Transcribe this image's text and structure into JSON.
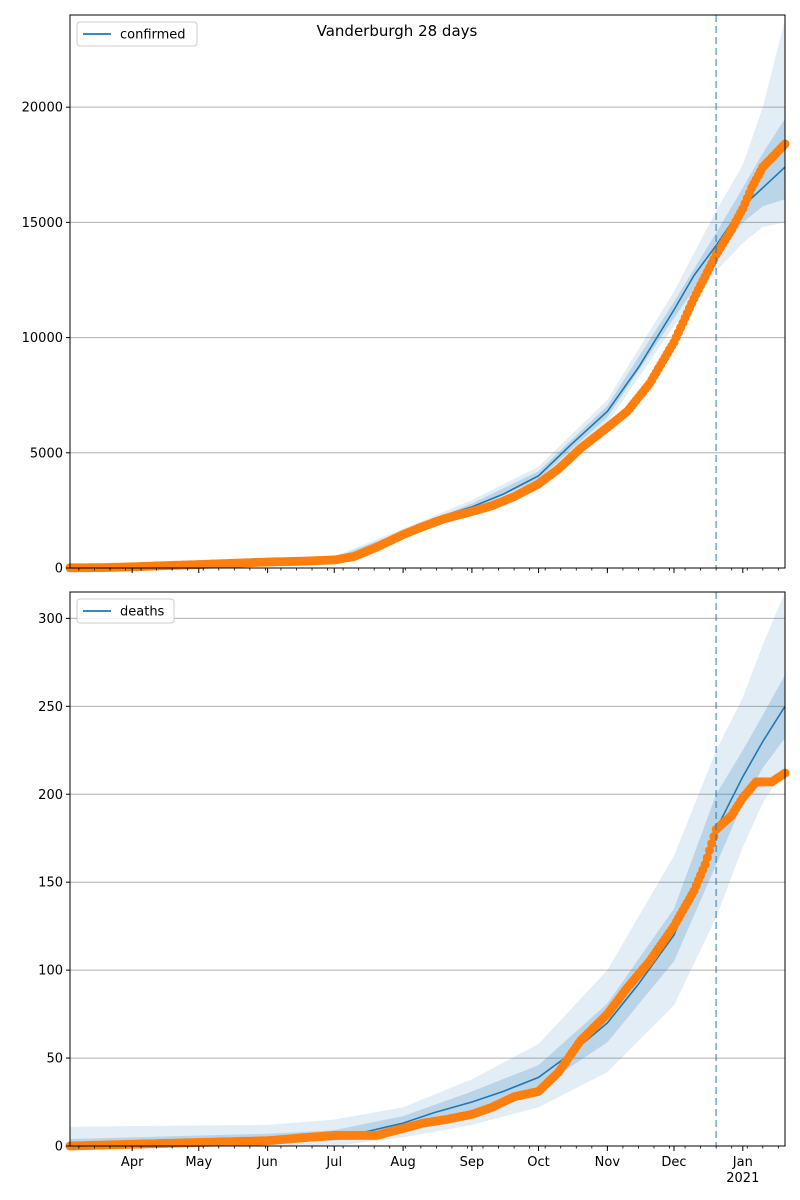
{
  "figure": {
    "title": "Vanderburgh 28 days"
  },
  "colors": {
    "model": "#1f77b4",
    "observed": "#ff7f0e",
    "band": "#1f77b4",
    "grid": "#b0b0b0",
    "divider": "#1f77b4"
  },
  "chart_data": [
    {
      "type": "line",
      "panel": "top",
      "title": "",
      "legend": "top-left",
      "grid": "y",
      "x_ticks": [
        {
          "date": "2020-04-01",
          "label": "Apr"
        },
        {
          "date": "2020-05-01",
          "label": "May"
        },
        {
          "date": "2020-06-01",
          "label": "Jun"
        },
        {
          "date": "2020-07-01",
          "label": "Jul"
        },
        {
          "date": "2020-08-01",
          "label": "Aug"
        },
        {
          "date": "2020-09-01",
          "label": "Sep"
        },
        {
          "date": "2020-10-01",
          "label": "Oct"
        },
        {
          "date": "2020-11-01",
          "label": "Nov"
        },
        {
          "date": "2020-12-01",
          "label": "Dec"
        },
        {
          "date": "2021-01-01",
          "label": "Jan",
          "year": "2021"
        }
      ],
      "xlim": [
        "2020-03-04",
        "2021-01-20"
      ],
      "ylim": [
        0,
        24000
      ],
      "y_ticks": [
        0,
        5000,
        10000,
        15000,
        20000
      ],
      "vline": "2020-12-20",
      "series": [
        {
          "name": "confirmed",
          "kind": "model",
          "x": [
            "2020-03-04",
            "2020-04-01",
            "2020-05-01",
            "2020-06-01",
            "2020-07-01",
            "2020-07-15",
            "2020-08-01",
            "2020-08-15",
            "2020-09-01",
            "2020-09-15",
            "2020-10-01",
            "2020-10-15",
            "2020-11-01",
            "2020-11-15",
            "2020-12-01",
            "2020-12-10",
            "2020-12-20",
            "2021-01-01",
            "2021-01-10",
            "2021-01-20"
          ],
          "y": [
            0,
            80,
            200,
            320,
            380,
            650,
            1500,
            2150,
            2650,
            3200,
            4000,
            5300,
            6800,
            8700,
            11200,
            12700,
            14000,
            15700,
            16500,
            17400
          ]
        },
        {
          "name": "confirmed band outer",
          "kind": "band",
          "x": [
            "2020-03-04",
            "2020-07-01",
            "2020-08-01",
            "2020-09-01",
            "2020-10-01",
            "2020-11-01",
            "2020-12-01",
            "2020-12-20",
            "2021-01-01",
            "2021-01-10",
            "2021-01-20"
          ],
          "lower": [
            0,
            300,
            1300,
            2400,
            3700,
            6300,
            10500,
            12900,
            14100,
            14800,
            15000
          ],
          "upper": [
            100,
            500,
            1700,
            2950,
            4400,
            7300,
            12000,
            15500,
            17500,
            20000,
            23800
          ]
        },
        {
          "name": "confirmed band inner",
          "kind": "band",
          "x": [
            "2020-03-04",
            "2020-07-01",
            "2020-08-01",
            "2020-09-01",
            "2020-10-01",
            "2020-11-01",
            "2020-12-01",
            "2020-12-20",
            "2021-01-01",
            "2021-01-10",
            "2021-01-20"
          ],
          "lower": [
            0,
            340,
            1400,
            2520,
            3850,
            6550,
            10850,
            13450,
            15000,
            15700,
            16000
          ],
          "upper": [
            70,
            440,
            1600,
            2800,
            4200,
            7050,
            11550,
            14550,
            16500,
            18000,
            19500
          ]
        },
        {
          "name": "confirmed observed",
          "kind": "observed",
          "x": [
            "2020-03-04",
            "2020-03-20",
            "2020-04-01",
            "2020-04-15",
            "2020-05-01",
            "2020-05-15",
            "2020-06-01",
            "2020-06-15",
            "2020-07-01",
            "2020-07-10",
            "2020-07-20",
            "2020-08-01",
            "2020-08-10",
            "2020-08-20",
            "2020-09-01",
            "2020-09-10",
            "2020-09-20",
            "2020-10-01",
            "2020-10-10",
            "2020-10-20",
            "2020-11-01",
            "2020-11-10",
            "2020-11-20",
            "2020-12-01",
            "2020-12-10",
            "2020-12-20",
            "2020-12-27",
            "2021-01-01",
            "2021-01-05",
            "2021-01-10",
            "2021-01-15",
            "2021-01-20"
          ],
          "y": [
            10,
            20,
            50,
            100,
            150,
            200,
            260,
            290,
            350,
            500,
            900,
            1450,
            1800,
            2150,
            2450,
            2700,
            3100,
            3650,
            4300,
            5200,
            6100,
            6800,
            8000,
            9800,
            11700,
            13600,
            14700,
            15600,
            16500,
            17400,
            17900,
            18400
          ]
        }
      ]
    },
    {
      "type": "line",
      "panel": "bottom",
      "title": "",
      "legend": "top-left",
      "grid": "y",
      "x_ticks": [
        {
          "date": "2020-04-01",
          "label": "Apr"
        },
        {
          "date": "2020-05-01",
          "label": "May"
        },
        {
          "date": "2020-06-01",
          "label": "Jun"
        },
        {
          "date": "2020-07-01",
          "label": "Jul"
        },
        {
          "date": "2020-08-01",
          "label": "Aug"
        },
        {
          "date": "2020-09-01",
          "label": "Sep"
        },
        {
          "date": "2020-10-01",
          "label": "Oct"
        },
        {
          "date": "2020-11-01",
          "label": "Nov"
        },
        {
          "date": "2020-12-01",
          "label": "Dec"
        },
        {
          "date": "2021-01-01",
          "label": "Jan",
          "year": "2021"
        }
      ],
      "xlim": [
        "2020-03-04",
        "2021-01-20"
      ],
      "ylim": [
        0,
        315
      ],
      "y_ticks": [
        0,
        50,
        100,
        150,
        200,
        250,
        300
      ],
      "vline": "2020-12-20",
      "series": [
        {
          "name": "deaths",
          "kind": "model",
          "x": [
            "2020-03-04",
            "2020-05-01",
            "2020-06-01",
            "2020-07-01",
            "2020-07-15",
            "2020-08-01",
            "2020-08-15",
            "2020-09-01",
            "2020-09-15",
            "2020-10-01",
            "2020-10-15",
            "2020-11-01",
            "2020-11-15",
            "2020-12-01",
            "2020-12-10",
            "2020-12-20",
            "2021-01-01",
            "2021-01-10",
            "2021-01-20"
          ],
          "y": [
            0,
            2,
            4,
            6,
            8,
            13,
            19,
            25,
            31,
            39,
            52,
            70,
            92,
            120,
            148,
            180,
            210,
            230,
            250
          ]
        },
        {
          "name": "deaths band outer",
          "kind": "band",
          "x": [
            "2020-03-04",
            "2020-06-01",
            "2020-07-01",
            "2020-08-01",
            "2020-09-01",
            "2020-10-01",
            "2020-11-01",
            "2020-12-01",
            "2020-12-20",
            "2021-01-01",
            "2021-01-10",
            "2021-01-20"
          ],
          "lower": [
            0,
            0,
            0,
            5,
            12,
            22,
            42,
            80,
            130,
            170,
            195,
            215
          ],
          "upper": [
            11,
            12,
            15,
            22,
            38,
            58,
            100,
            165,
            225,
            255,
            285,
            315
          ]
        },
        {
          "name": "deaths band inner",
          "kind": "band",
          "x": [
            "2020-03-04",
            "2020-06-01",
            "2020-07-01",
            "2020-08-01",
            "2020-09-01",
            "2020-10-01",
            "2020-11-01",
            "2020-12-01",
            "2020-12-20",
            "2021-01-01",
            "2021-01-10",
            "2021-01-20"
          ],
          "lower": [
            0,
            2,
            3,
            9,
            19,
            33,
            59,
            105,
            160,
            195,
            215,
            232
          ],
          "upper": [
            4,
            7,
            9,
            17,
            31,
            46,
            81,
            135,
            200,
            225,
            245,
            268
          ]
        },
        {
          "name": "deaths observed",
          "kind": "observed",
          "x": [
            "2020-03-04",
            "2020-04-01",
            "2020-05-01",
            "2020-06-01",
            "2020-06-20",
            "2020-07-01",
            "2020-07-20",
            "2020-08-01",
            "2020-08-10",
            "2020-08-20",
            "2020-09-01",
            "2020-09-10",
            "2020-09-20",
            "2020-10-01",
            "2020-10-10",
            "2020-10-20",
            "2020-11-01",
            "2020-11-10",
            "2020-11-20",
            "2020-12-01",
            "2020-12-10",
            "2020-12-15",
            "2020-12-20",
            "2020-12-27",
            "2021-01-01",
            "2021-01-07",
            "2021-01-14",
            "2021-01-20"
          ],
          "y": [
            0,
            1,
            2,
            3,
            5,
            6,
            6,
            10,
            13,
            15,
            18,
            22,
            28,
            31,
            42,
            60,
            75,
            90,
            105,
            125,
            145,
            160,
            180,
            188,
            198,
            207,
            207,
            212
          ]
        }
      ]
    }
  ]
}
